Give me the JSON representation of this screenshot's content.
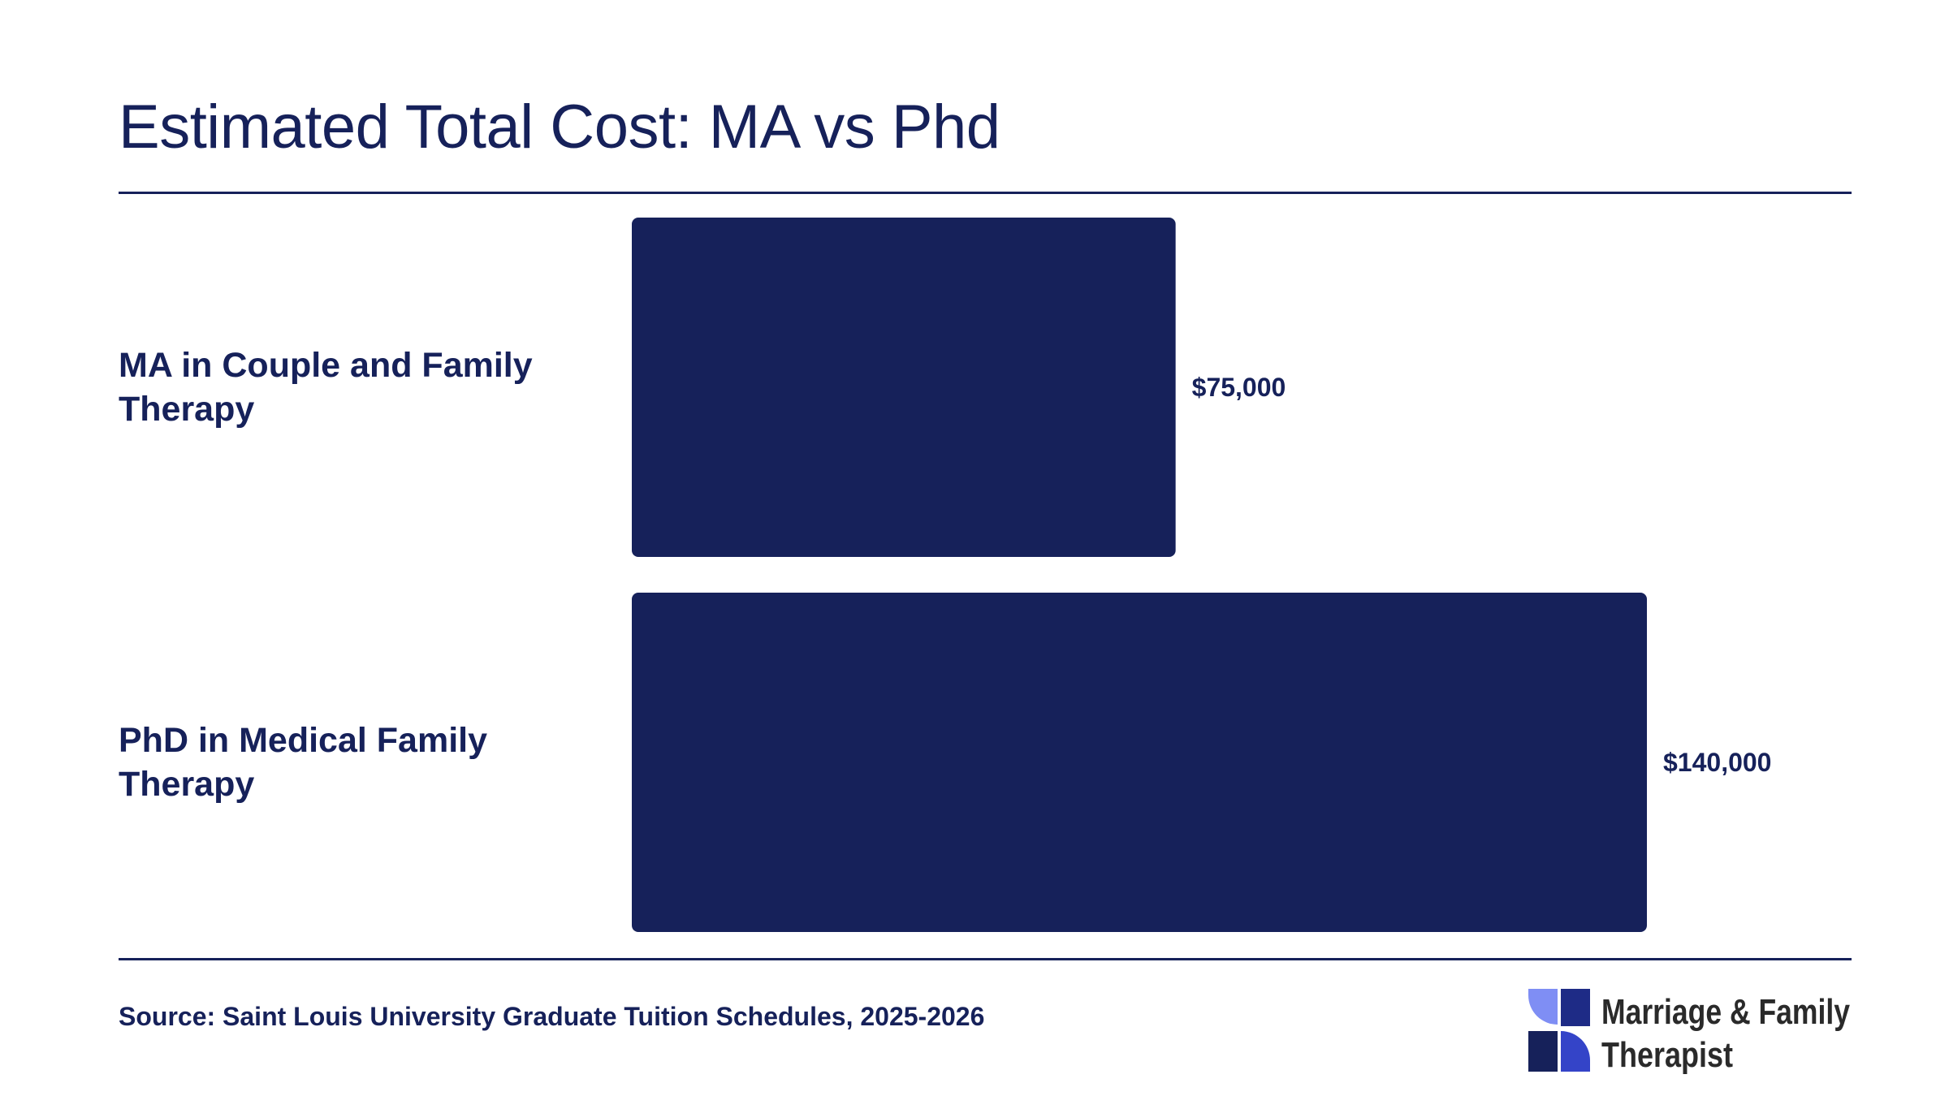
{
  "title": "Estimated Total Cost: MA vs Phd",
  "source": "Source: Saint Louis University Graduate Tuition Schedules, 2025-2026",
  "logo": {
    "line1": "Marriage & Family",
    "line2": "Therapist",
    "icon": "four-petal-pinwheel-icon",
    "colors": [
      "#7f8ef4",
      "#4b5fe0",
      "#1e2b86",
      "#16215a"
    ]
  },
  "colors": {
    "bar": "#16215a",
    "text": "#16215a",
    "background": "#ffffff"
  },
  "chart_data": {
    "type": "bar",
    "orientation": "horizontal",
    "title": "Estimated Total Cost: MA vs Phd",
    "categories": [
      "MA in Couple and Family Therapy",
      "PhD in Medical Family Therapy"
    ],
    "category_lines": [
      [
        "MA in Couple and Family",
        "Therapy"
      ],
      [
        "PhD in Medical Family",
        "Therapy"
      ]
    ],
    "values": [
      75000,
      140000
    ],
    "value_labels": [
      "$75,000",
      "$140,000"
    ],
    "xlim": [
      0,
      140000
    ],
    "grid": false,
    "legend": false
  }
}
